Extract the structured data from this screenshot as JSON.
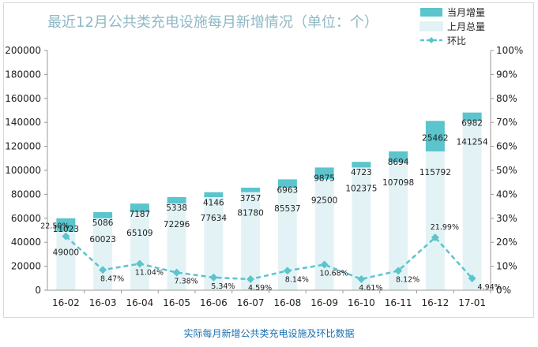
{
  "caption": "实际每月新增公共类充电设施及环比数据",
  "colors": {
    "increment_bar": "#5bc4cc",
    "total_bar": "#e3f3f5",
    "ratio_line": "#5bc4cc",
    "title": "#8fb8c4",
    "caption": "#1a6fb0",
    "grid": "#cccccc"
  },
  "chart_data": {
    "type": "bar",
    "title": "最近12月公共类充电设施每月新增情况（单位：个）",
    "categories": [
      "16-02",
      "16-03",
      "16-04",
      "16-05",
      "16-06",
      "16-07",
      "16-08",
      "16-09",
      "16-10",
      "16-11",
      "16-12",
      "17-01"
    ],
    "series": [
      {
        "name": "当月增量",
        "values": [
          11023,
          5086,
          7187,
          5338,
          4146,
          3757,
          6963,
          9875,
          4723,
          8694,
          25462,
          6982
        ]
      },
      {
        "name": "上月总量",
        "values": [
          49000,
          60023,
          65109,
          72296,
          77634,
          81780,
          85537,
          92500,
          102375,
          107098,
          115792,
          141254
        ]
      },
      {
        "name": "环比",
        "axis": "right",
        "values": [
          22.5,
          8.47,
          11.04,
          7.38,
          5.34,
          4.59,
          8.14,
          10.68,
          4.61,
          8.12,
          21.99,
          4.94
        ],
        "labels": [
          "22.50%",
          "8.47%",
          "11.04%",
          "7.38%",
          "5.34%",
          "4.59%",
          "8.14%",
          "10.68%",
          "4.61%",
          "8.12%",
          "21.99%",
          "4.94%"
        ]
      }
    ],
    "y_left": {
      "min": 0,
      "max": 200000,
      "step": 20000,
      "ticks": [
        "0",
        "20000",
        "40000",
        "60000",
        "80000",
        "100000",
        "120000",
        "140000",
        "160000",
        "180000",
        "200000"
      ]
    },
    "y_right": {
      "min": 0,
      "max": 100,
      "step": 10,
      "ticks": [
        "0%",
        "10%",
        "20%",
        "30%",
        "40%",
        "50%",
        "60%",
        "70%",
        "80%",
        "90%",
        "100%"
      ]
    },
    "grid": false,
    "legend_position": "top-right"
  }
}
